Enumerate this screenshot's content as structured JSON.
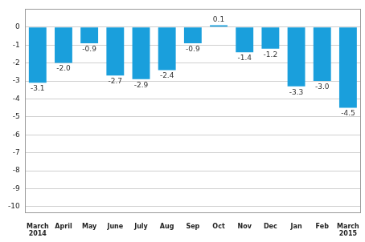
{
  "chart_data": {
    "type": "bar",
    "categories": [
      [
        "March",
        "2014"
      ],
      "April",
      "May",
      "June",
      "July",
      "Aug",
      "Sep",
      "Oct",
      "Nov",
      "Dec",
      "Jan",
      "Feb",
      [
        "March",
        "2015"
      ]
    ],
    "values": [
      -3.1,
      -2.0,
      -0.9,
      -2.7,
      -2.9,
      -2.4,
      -0.9,
      0.1,
      -1.4,
      -1.2,
      -3.3,
      -3.0,
      -4.5
    ],
    "value_labels": [
      "-3.1",
      "-2.0",
      "-0.9",
      "-2.7",
      "-2.9",
      "-2.4",
      "-0.9",
      "0.1",
      "-1.4",
      "-1.2",
      "-3.3",
      "-3.0",
      "-4.5"
    ],
    "color": "#1a9fdc",
    "ylim": [
      -10.4,
      1.0
    ],
    "yticks": [
      -10,
      -9,
      -8,
      -7,
      -6,
      -5,
      -4,
      -3,
      -2,
      -1,
      0
    ],
    "grid": true,
    "data_labels": true
  }
}
